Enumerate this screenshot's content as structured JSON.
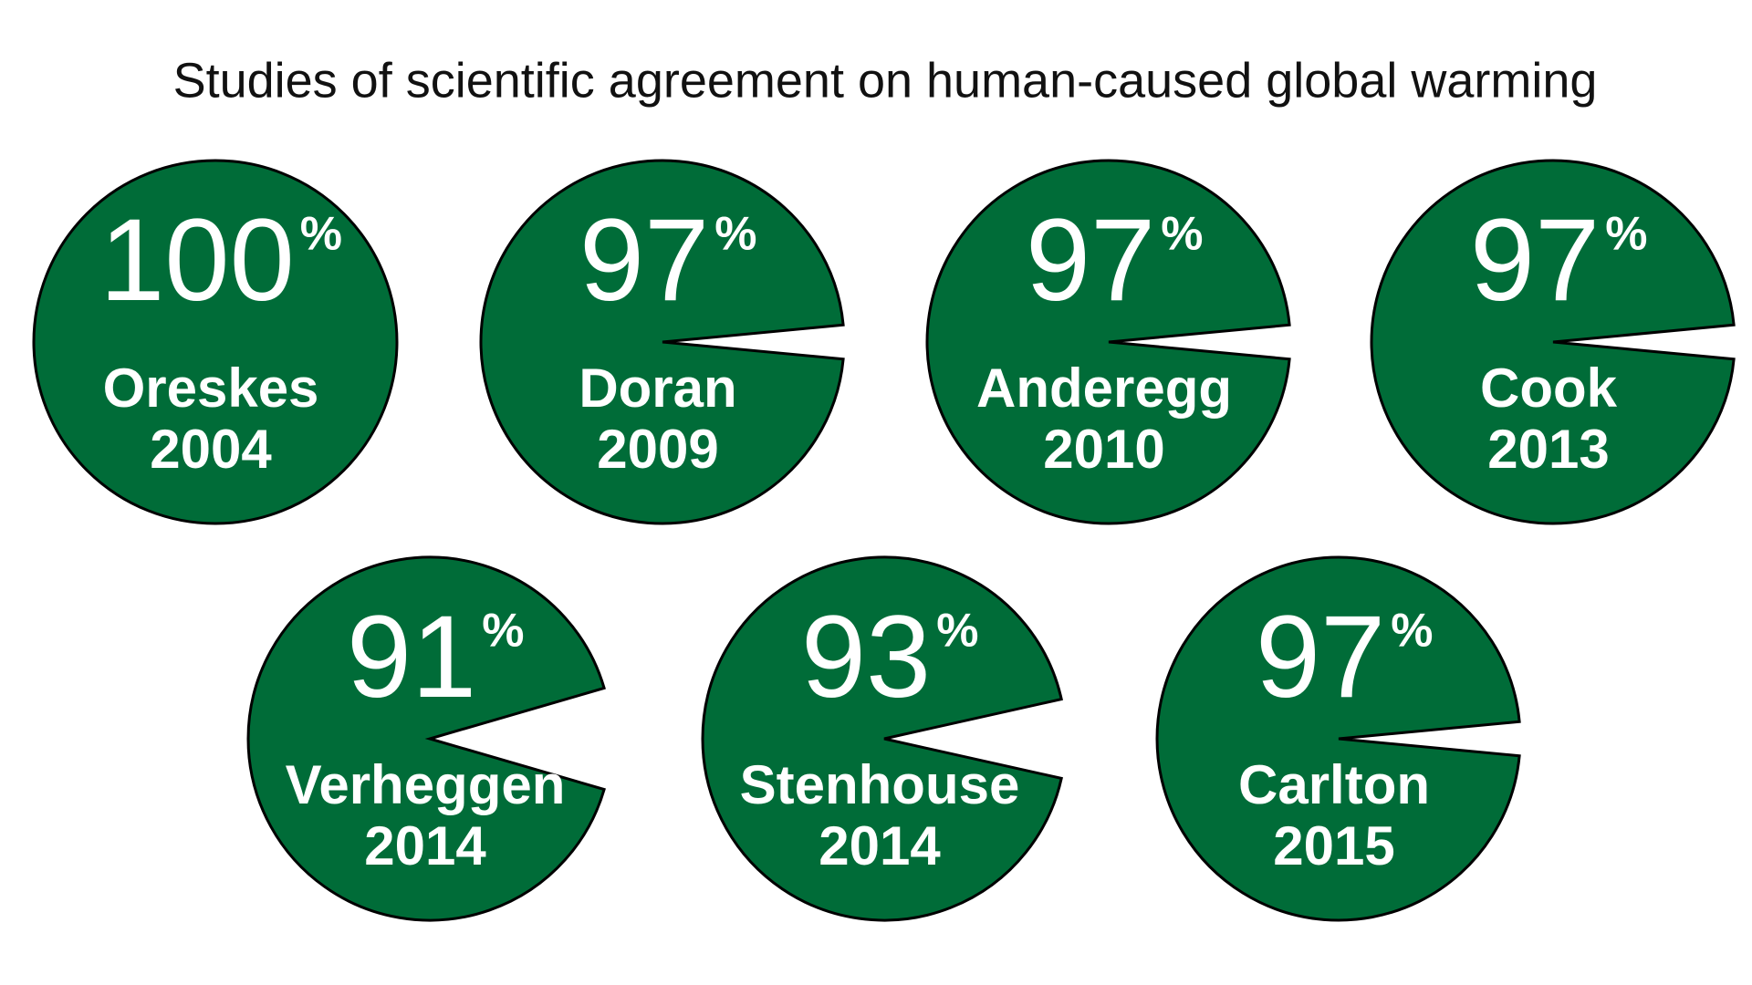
{
  "chart_data": {
    "type": "pie",
    "title": "Studies of scientific agreement on human-caused global warming",
    "unit": "%",
    "color": "#006c38",
    "items": [
      {
        "name": "Oreskes",
        "year": "2004",
        "value": 100
      },
      {
        "name": "Doran",
        "year": "2009",
        "value": 97
      },
      {
        "name": "Anderegg",
        "year": "2010",
        "value": 97
      },
      {
        "name": "Cook",
        "year": "2013",
        "value": 97
      },
      {
        "name": "Verheggen",
        "year": "2014",
        "value": 91
      },
      {
        "name": "Stenhouse",
        "year": "2014",
        "value": 93
      },
      {
        "name": "Carlton",
        "year": "2015",
        "value": 97
      }
    ]
  }
}
